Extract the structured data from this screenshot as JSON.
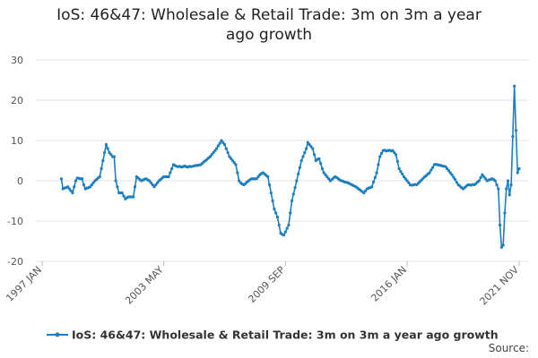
{
  "chart_data": {
    "type": "line",
    "title": "IoS: 46&47: Wholesale & Retail Trade: 3m on 3m a year ago growth",
    "source": "Source:",
    "categories": [
      "1997 JAN",
      null,
      null,
      null,
      null,
      null,
      null,
      null,
      null,
      null,
      null,
      null,
      null,
      null,
      null,
      null,
      null,
      null,
      null,
      null,
      null,
      null,
      null,
      null,
      null,
      null,
      null,
      null,
      null,
      null,
      null,
      null,
      null,
      null,
      null,
      null,
      null,
      null,
      null,
      null,
      null,
      null,
      null,
      null,
      null,
      null,
      null,
      null,
      null,
      null,
      null,
      null,
      null,
      null,
      null,
      null,
      null,
      null,
      null,
      null,
      null,
      null,
      null,
      null,
      null,
      null,
      null,
      null,
      null,
      null,
      null,
      null,
      null,
      null,
      null,
      null,
      "2003 MAY",
      null,
      null,
      null,
      null,
      null,
      null,
      null,
      null,
      null,
      null,
      null,
      null,
      null,
      null,
      null,
      null,
      null,
      null,
      null,
      null,
      null,
      null,
      null,
      null,
      null,
      null,
      null,
      null,
      null,
      null,
      null,
      null,
      null,
      null,
      null,
      null,
      null,
      null,
      null,
      null,
      null,
      null,
      null,
      null,
      null,
      null,
      null,
      null,
      null,
      null,
      null,
      null,
      null,
      null,
      null,
      null,
      null,
      null,
      null,
      null,
      null,
      null,
      null,
      null,
      null,
      null,
      null,
      null,
      null,
      null,
      null,
      null,
      null,
      null,
      null,
      "2009 SEP",
      null,
      null,
      null,
      null,
      null,
      null,
      null,
      null,
      null,
      null,
      null,
      null,
      null,
      null,
      null,
      null,
      null,
      null,
      null,
      null,
      null,
      null,
      null,
      null,
      null,
      null,
      null,
      null,
      null,
      null,
      null,
      null,
      null,
      null,
      null,
      null,
      null,
      null,
      null,
      null,
      null,
      null,
      null,
      null,
      null,
      null,
      null,
      null,
      null,
      null,
      null,
      null,
      null,
      null,
      null,
      null,
      null,
      null,
      null,
      null,
      null,
      null,
      null,
      null,
      null,
      null,
      null,
      null,
      null,
      null,
      null,
      null,
      null,
      null,
      null,
      "2016 JAN",
      null,
      null,
      null,
      null,
      null,
      null,
      null,
      null,
      null,
      null,
      null,
      null,
      null,
      null,
      null,
      null,
      null,
      null,
      null,
      null,
      null,
      null,
      null,
      null,
      null,
      null,
      null,
      null,
      null,
      null,
      null,
      null,
      null,
      null,
      null,
      null,
      null,
      null,
      null,
      null,
      null,
      null,
      null,
      null,
      null,
      null,
      null,
      null,
      null,
      null,
      null,
      null,
      null,
      null,
      null,
      null,
      null,
      null,
      null,
      null,
      null,
      null,
      null,
      null,
      null,
      null,
      null,
      null,
      null,
      "2021 NOV"
    ],
    "series": [
      {
        "name": "IoS: 46&47: Wholesale & Retail Trade: 3m on 3m a year ago growth",
        "color": "#1b7fc1",
        "values": [
          null,
          null,
          null,
          null,
          null,
          null,
          null,
          null,
          null,
          null,
          null,
          null,
          0.5,
          -2,
          -1.8,
          -1.7,
          -1.5,
          -2,
          -2.5,
          -3,
          -1.5,
          0,
          0.7,
          0.6,
          0.5,
          0.5,
          -1,
          -2,
          -1.8,
          -1.7,
          -1.5,
          -1,
          -0.5,
          0,
          0.3,
          0.7,
          1,
          3,
          5,
          7,
          9,
          8,
          7,
          6.5,
          6,
          6,
          0,
          -1.5,
          -3,
          -3,
          -3,
          -3.8,
          -4.5,
          -4.2,
          -4,
          -4,
          -4,
          -4,
          -1.5,
          1,
          0.7,
          0.3,
          0,
          0.2,
          0.4,
          0.5,
          0.2,
          0,
          -0.5,
          -1,
          -1.5,
          -1,
          -0.5,
          0,
          0.3,
          0.7,
          1,
          1,
          1,
          1,
          2,
          3,
          4,
          3.8,
          3.6,
          3.5,
          3.6,
          3.4,
          3.5,
          3.7,
          3.5,
          3.4,
          3.6,
          3.5,
          3.6,
          3.7,
          3.8,
          3.8,
          3.9,
          4,
          4.3,
          4.7,
          5,
          5.3,
          5.7,
          6,
          6.5,
          7,
          7.5,
          8,
          8.7,
          9.3,
          10,
          9.5,
          9,
          8,
          7,
          6,
          5.5,
          5,
          4.5,
          4,
          2,
          0,
          -0.5,
          -0.8,
          -1,
          -0.7,
          -0.3,
          0,
          0.3,
          0.5,
          0.5,
          0.5,
          0.5,
          1,
          1.5,
          1.8,
          2,
          1.7,
          1.3,
          1,
          -1,
          -3,
          -5,
          -7,
          -8,
          -9,
          -11,
          -13,
          -13.3,
          -13.5,
          -12.7,
          -11.8,
          -11,
          -8,
          -5,
          -3.3,
          -1.7,
          0,
          1.7,
          3.3,
          5,
          6,
          7,
          8,
          9.5,
          9,
          8.5,
          8,
          6.5,
          5,
          5.3,
          5.5,
          4.3,
          3,
          2,
          1.5,
          1,
          0.5,
          0,
          0.3,
          0.7,
          1,
          0.8,
          0.5,
          0.2,
          0,
          -0.1,
          -0.3,
          -0.4,
          -0.5,
          -0.7,
          -0.9,
          -1.1,
          -1.3,
          -1.5,
          -1.8,
          -2.1,
          -2.4,
          -2.7,
          -3,
          -2.5,
          -2,
          -1.8,
          -1.7,
          -1.5,
          -0.3,
          0.8,
          2,
          4,
          6,
          6.8,
          7.5,
          7.6,
          7.4,
          7.5,
          7.6,
          7.4,
          7.5,
          7,
          6.5,
          4.8,
          3,
          2.3,
          1.7,
          1,
          0.5,
          0,
          -0.5,
          -1,
          -1.1,
          -1,
          -0.9,
          -1,
          -0.6,
          -0.2,
          0.2,
          0.6,
          1,
          1.3,
          1.7,
          2,
          2.7,
          3.3,
          4,
          4.1,
          4,
          3.9,
          3.8,
          3.7,
          3.6,
          3.5,
          3,
          2.5,
          2,
          1.5,
          0.9,
          0.3,
          -0.4,
          -1,
          -1.3,
          -1.7,
          -2,
          -1.7,
          -1.3,
          -1,
          -1,
          -1.1,
          -0.9,
          -1,
          -0.7,
          -0.3,
          0,
          0.8,
          1.5,
          1,
          0.5,
          0,
          0.2,
          0.3,
          0.5,
          0.3,
          0,
          -1,
          -2,
          -11,
          -16.5,
          -16,
          -8,
          -2,
          0,
          -3.5,
          -1,
          11,
          23.5,
          12.5,
          2,
          3
        ]
      }
    ],
    "ylim": [
      -20,
      30
    ],
    "yticks": [
      -20,
      -10,
      0,
      10,
      20,
      30
    ],
    "grid": true,
    "legend": "bottom"
  }
}
